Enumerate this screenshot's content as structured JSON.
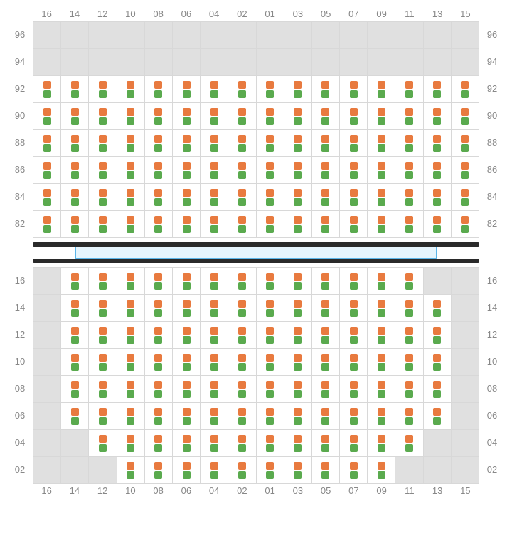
{
  "colors": {
    "seat_top": "#e87a3f",
    "seat_bottom": "#5aaa4e",
    "empty_cell": "#e0e0e0",
    "seat_cell": "#ffffff",
    "grid_border": "#d8d8d8",
    "label_text": "#888888",
    "stage_bar": "#2a2a2a",
    "stage_box_fill": "#e6f5fd",
    "stage_box_border": "#5bb5e8"
  },
  "column_labels": [
    "16",
    "14",
    "12",
    "10",
    "08",
    "06",
    "04",
    "02",
    "01",
    "03",
    "05",
    "07",
    "09",
    "11",
    "13",
    "15"
  ],
  "top_section": {
    "row_labels": [
      "96",
      "94",
      "92",
      "90",
      "88",
      "86",
      "84",
      "82"
    ],
    "rows": [
      [
        "E",
        "E",
        "E",
        "E",
        "E",
        "E",
        "E",
        "E",
        "E",
        "E",
        "E",
        "E",
        "E",
        "E",
        "E",
        "E"
      ],
      [
        "E",
        "E",
        "E",
        "E",
        "E",
        "E",
        "E",
        "E",
        "E",
        "E",
        "E",
        "E",
        "E",
        "E",
        "E",
        "E"
      ],
      [
        "S",
        "S",
        "S",
        "S",
        "S",
        "S",
        "S",
        "S",
        "S",
        "S",
        "S",
        "S",
        "S",
        "S",
        "S",
        "S"
      ],
      [
        "S",
        "S",
        "S",
        "S",
        "S",
        "S",
        "S",
        "S",
        "S",
        "S",
        "S",
        "S",
        "S",
        "S",
        "S",
        "S"
      ],
      [
        "S",
        "S",
        "S",
        "S",
        "S",
        "S",
        "S",
        "S",
        "S",
        "S",
        "S",
        "S",
        "S",
        "S",
        "S",
        "S"
      ],
      [
        "S",
        "S",
        "S",
        "S",
        "S",
        "S",
        "S",
        "S",
        "S",
        "S",
        "S",
        "S",
        "S",
        "S",
        "S",
        "S"
      ],
      [
        "S",
        "S",
        "S",
        "S",
        "S",
        "S",
        "S",
        "S",
        "S",
        "S",
        "S",
        "S",
        "S",
        "S",
        "S",
        "S"
      ],
      [
        "S",
        "S",
        "S",
        "S",
        "S",
        "S",
        "S",
        "S",
        "S",
        "S",
        "S",
        "S",
        "S",
        "S",
        "S",
        "S"
      ]
    ]
  },
  "bottom_section": {
    "row_labels": [
      "16",
      "14",
      "12",
      "10",
      "08",
      "06",
      "04",
      "02"
    ],
    "rows": [
      [
        "E",
        "S",
        "S",
        "S",
        "S",
        "S",
        "S",
        "S",
        "S",
        "S",
        "S",
        "S",
        "S",
        "S",
        "E",
        "E"
      ],
      [
        "E",
        "S",
        "S",
        "S",
        "S",
        "S",
        "S",
        "S",
        "S",
        "S",
        "S",
        "S",
        "S",
        "S",
        "S",
        "E"
      ],
      [
        "E",
        "S",
        "S",
        "S",
        "S",
        "S",
        "S",
        "S",
        "S",
        "S",
        "S",
        "S",
        "S",
        "S",
        "S",
        "E"
      ],
      [
        "E",
        "S",
        "S",
        "S",
        "S",
        "S",
        "S",
        "S",
        "S",
        "S",
        "S",
        "S",
        "S",
        "S",
        "S",
        "E"
      ],
      [
        "E",
        "S",
        "S",
        "S",
        "S",
        "S",
        "S",
        "S",
        "S",
        "S",
        "S",
        "S",
        "S",
        "S",
        "S",
        "E"
      ],
      [
        "E",
        "S",
        "S",
        "S",
        "S",
        "S",
        "S",
        "S",
        "S",
        "S",
        "S",
        "S",
        "S",
        "S",
        "S",
        "E"
      ],
      [
        "E",
        "E",
        "S",
        "S",
        "S",
        "S",
        "S",
        "S",
        "S",
        "S",
        "S",
        "S",
        "S",
        "S",
        "E",
        "E"
      ],
      [
        "E",
        "E",
        "E",
        "S",
        "S",
        "S",
        "S",
        "S",
        "S",
        "S",
        "S",
        "S",
        "S",
        "E",
        "E",
        "E"
      ]
    ]
  },
  "stage_box_count": 3
}
